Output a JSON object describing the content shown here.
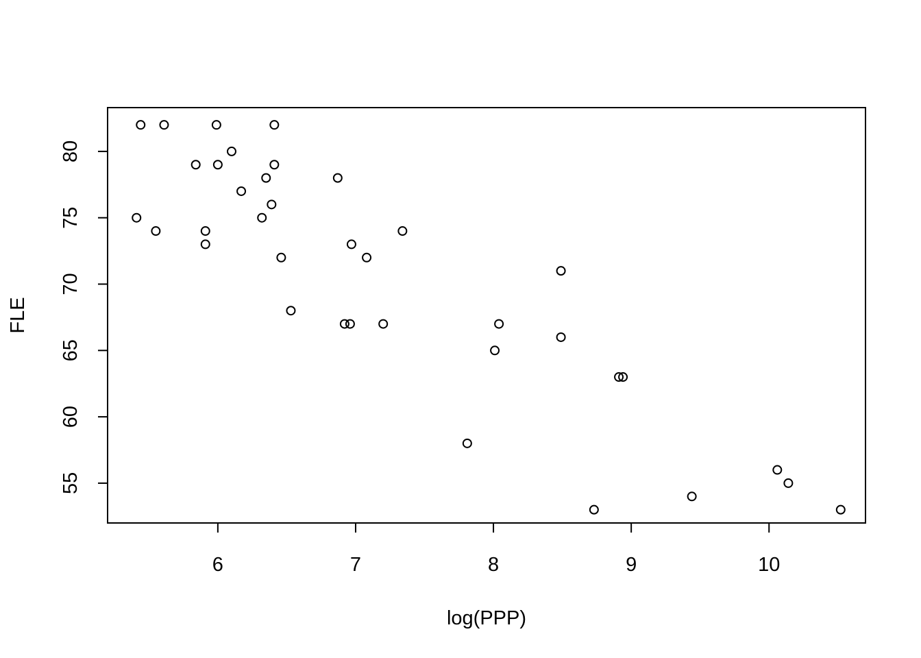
{
  "chart_data": {
    "type": "scatter",
    "title": "",
    "xlabel": "log(PPP)",
    "ylabel": "FLE",
    "xlim": [
      5.2,
      10.7
    ],
    "ylim": [
      52.0,
      83.3
    ],
    "x_ticks": [
      6,
      7,
      8,
      9,
      10
    ],
    "y_ticks": [
      55,
      60,
      65,
      70,
      75,
      80
    ],
    "marker": "open-circle",
    "grid": false,
    "legend": "none",
    "series": [
      {
        "points": [
          {
            "x": 5.44,
            "y": 82
          },
          {
            "x": 5.61,
            "y": 82
          },
          {
            "x": 5.99,
            "y": 82
          },
          {
            "x": 6.41,
            "y": 82
          },
          {
            "x": 6.1,
            "y": 80
          },
          {
            "x": 5.84,
            "y": 79
          },
          {
            "x": 6.0,
            "y": 79
          },
          {
            "x": 6.41,
            "y": 79
          },
          {
            "x": 6.35,
            "y": 78
          },
          {
            "x": 6.87,
            "y": 78
          },
          {
            "x": 6.17,
            "y": 77
          },
          {
            "x": 6.39,
            "y": 76
          },
          {
            "x": 5.41,
            "y": 75
          },
          {
            "x": 6.32,
            "y": 75
          },
          {
            "x": 5.55,
            "y": 74
          },
          {
            "x": 5.91,
            "y": 74
          },
          {
            "x": 7.34,
            "y": 74
          },
          {
            "x": 5.91,
            "y": 73
          },
          {
            "x": 6.97,
            "y": 73
          },
          {
            "x": 6.46,
            "y": 72
          },
          {
            "x": 7.08,
            "y": 72
          },
          {
            "x": 8.49,
            "y": 71
          },
          {
            "x": 6.53,
            "y": 68
          },
          {
            "x": 6.92,
            "y": 67
          },
          {
            "x": 6.96,
            "y": 67
          },
          {
            "x": 7.2,
            "y": 67
          },
          {
            "x": 8.04,
            "y": 67
          },
          {
            "x": 8.49,
            "y": 66
          },
          {
            "x": 8.01,
            "y": 65
          },
          {
            "x": 8.91,
            "y": 63
          },
          {
            "x": 8.94,
            "y": 63
          },
          {
            "x": 7.81,
            "y": 58
          },
          {
            "x": 10.06,
            "y": 56
          },
          {
            "x": 10.14,
            "y": 55
          },
          {
            "x": 9.44,
            "y": 54
          },
          {
            "x": 8.73,
            "y": 53
          },
          {
            "x": 10.52,
            "y": 53
          }
        ]
      }
    ]
  }
}
